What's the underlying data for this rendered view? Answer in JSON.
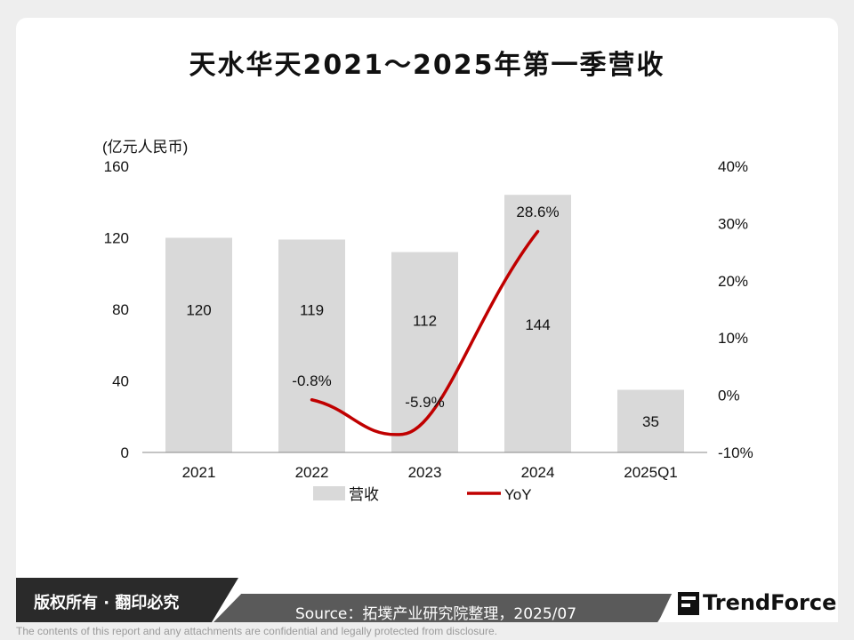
{
  "header": {
    "title": "天水华天2021～2025年第一季营收"
  },
  "chart_data": {
    "type": "bar",
    "title": "天水华天2021～2025年第一季营收",
    "ylabel": "(亿元人民币)",
    "categories": [
      "2021",
      "2022",
      "2023",
      "2024",
      "2025Q1"
    ],
    "series": [
      {
        "name": "营收",
        "type": "bar",
        "axis": "left",
        "color": "#d9d9d9",
        "values": [
          120,
          119,
          112,
          144,
          35
        ],
        "labels": [
          "120",
          "119",
          "112",
          "144",
          "35"
        ]
      },
      {
        "name": "YoY",
        "type": "line",
        "axis": "right",
        "color": "#c00000",
        "values": [
          null,
          -0.8,
          -5.9,
          28.6,
          null
        ],
        "labels": [
          "",
          "-0.8%",
          "-5.9%",
          "28.6%",
          ""
        ]
      }
    ],
    "ylim": [
      0,
      160
    ],
    "y_ticks": [
      "0",
      "40",
      "80",
      "120",
      "160"
    ],
    "y2lim": [
      -10,
      40
    ],
    "y2_ticks": [
      "-10%",
      "0%",
      "10%",
      "20%",
      "30%",
      "40%"
    ],
    "grid": false,
    "legend": "bottom"
  },
  "footer": {
    "rights": "版权所有 · 翻印必究",
    "source": "Source：拓墣产业研究院整理，2025/07",
    "logo": "TrendForce",
    "disclaimer": "The contents of this report and any attachments are confidential and legally protected from disclosure."
  },
  "colors": {
    "accent_line": "#c00000",
    "bar": "#d9d9d9",
    "footer_dark": "#2a2a2a"
  }
}
